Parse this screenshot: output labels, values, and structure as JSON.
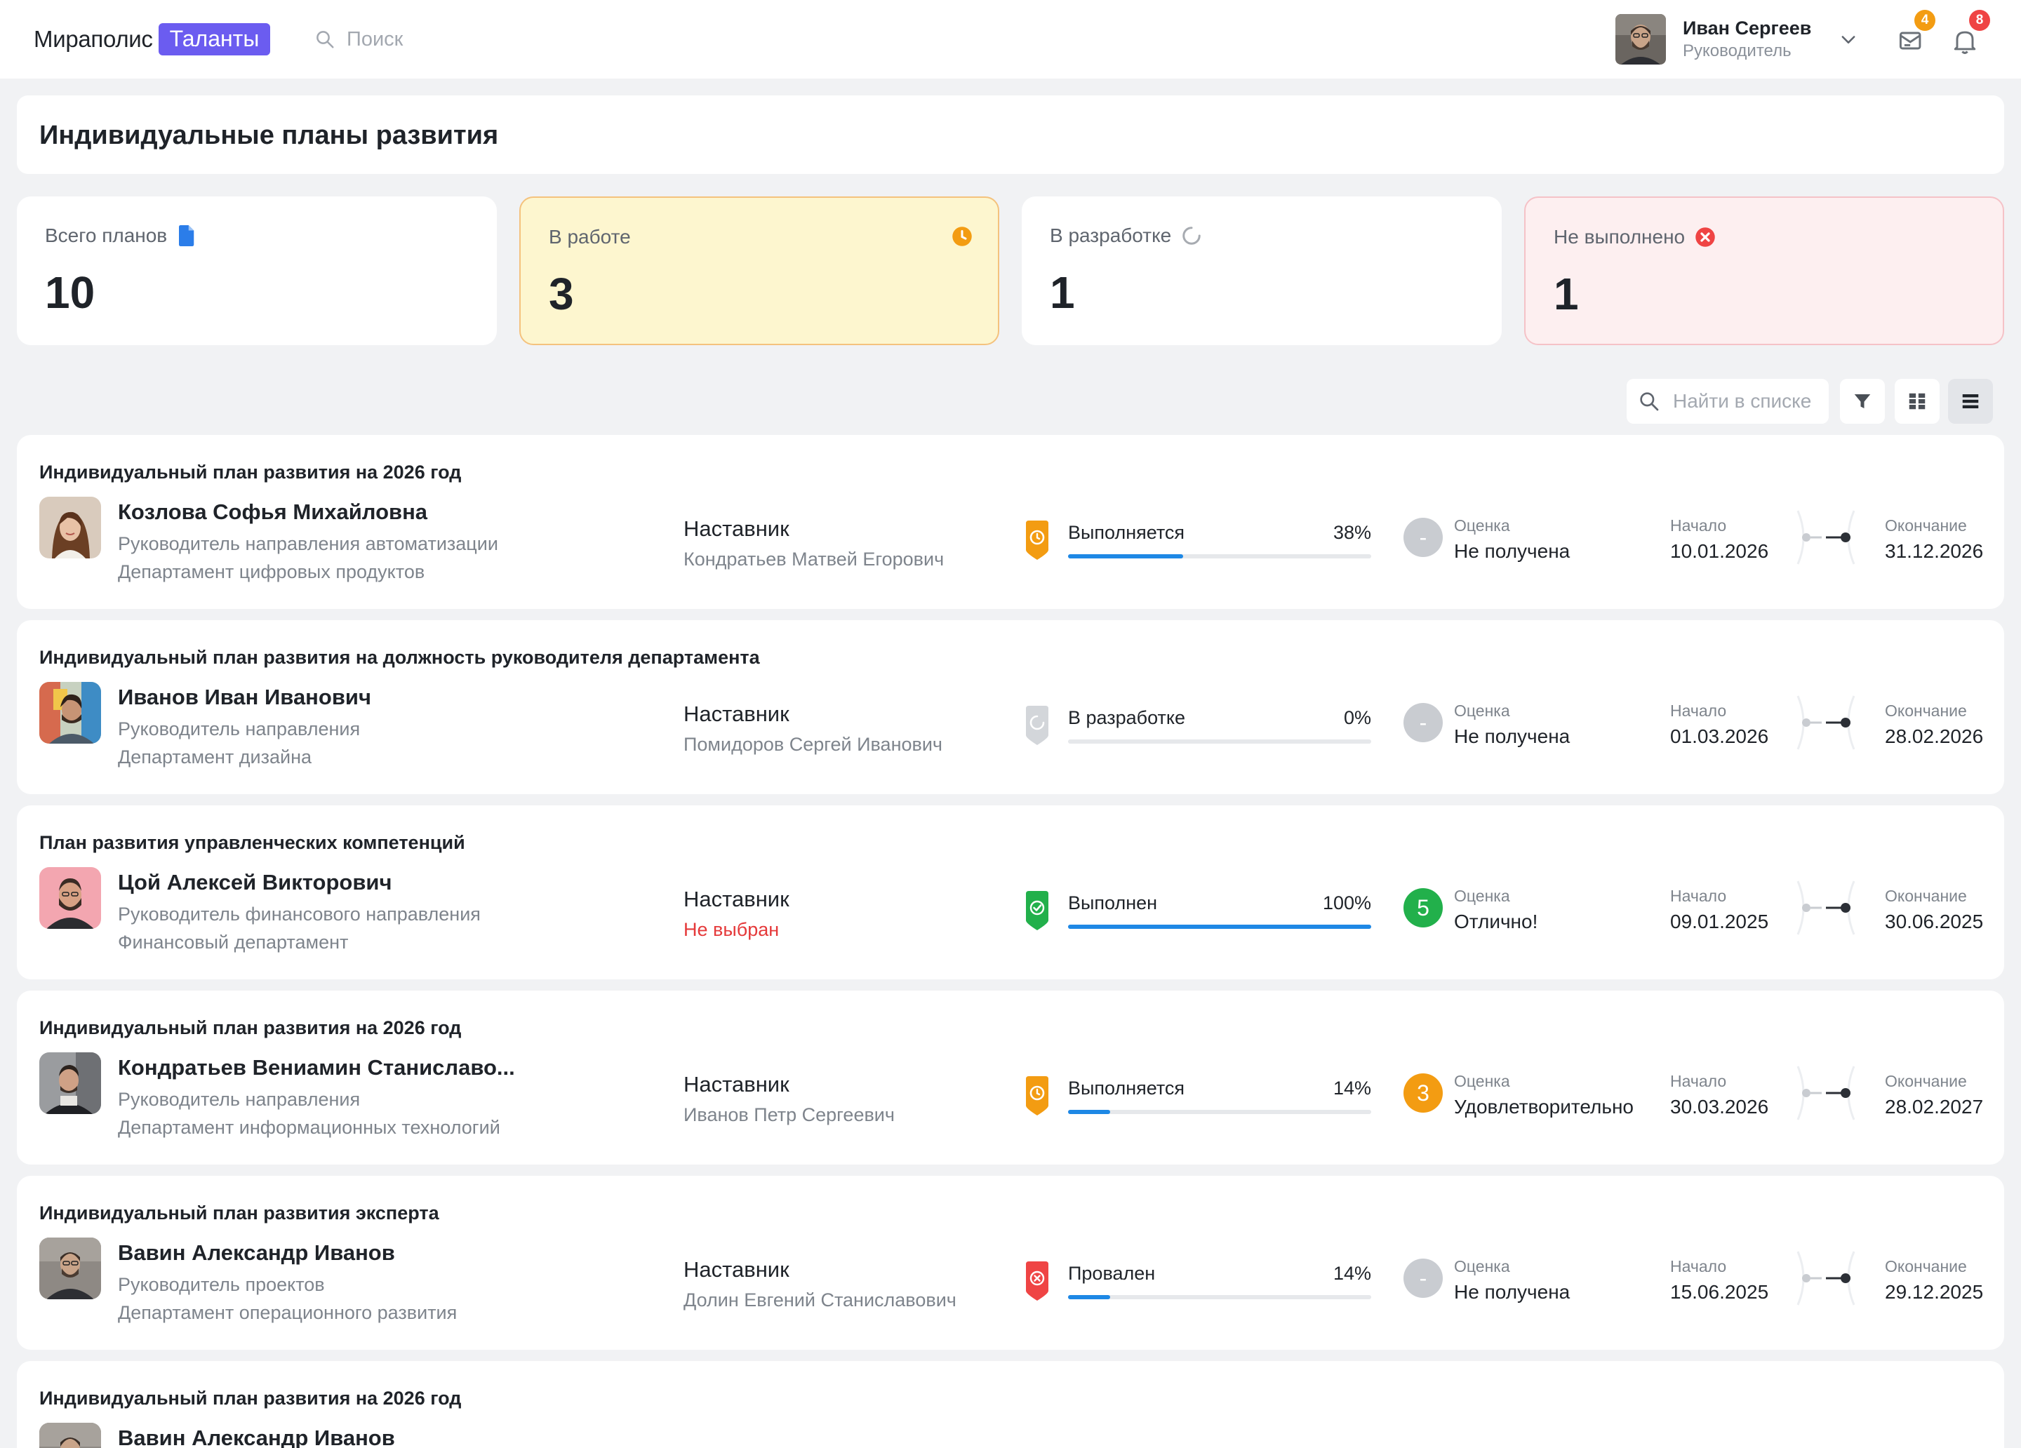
{
  "header": {
    "logo_text": "Мираполис",
    "logo_badge": "Таланты",
    "search_placeholder": "Поиск",
    "user_name": "Иван Сергеев",
    "user_role": "Руководитель",
    "messages_count": "4",
    "notifications_count": "8"
  },
  "page": {
    "title": "Индивидуальные планы развития"
  },
  "stats": [
    {
      "label": "Всего планов",
      "value": "10",
      "icon": "document-icon"
    },
    {
      "label": "В работе",
      "value": "3",
      "icon": "clock-icon"
    },
    {
      "label": "В разработке",
      "value": "1",
      "icon": "spinner-icon"
    },
    {
      "label": "Не выполнено",
      "value": "1",
      "icon": "error-icon"
    }
  ],
  "toolbar": {
    "search_placeholder": "Найти в списке"
  },
  "labels": {
    "mentor": "Наставник",
    "grade": "Оценка",
    "start": "Начало",
    "end": "Окончание"
  },
  "colors": {
    "accent": "#6b5cf0",
    "progress": "#1e88e5",
    "in_progress": "#f39c12",
    "done": "#22b04b",
    "failed": "#ef4444",
    "draft": "#c7cace"
  },
  "plans": [
    {
      "title": "Индивидуальный план развития на 2026 год",
      "name": "Козлова Софья Михайловна",
      "position": "Руководитель направления автоматизации",
      "department": "Департамент цифровых продуктов",
      "mentor": "Кондратьев Матвей Егорович",
      "status": "Выполняется",
      "status_type": "in_progress",
      "percent": "38%",
      "progress": 0.38,
      "grade_mark": "-",
      "grade": "Не получена",
      "start": "10.01.2026",
      "end": "31.12.2026"
    },
    {
      "title": "Индивидуальный план развития на должность руководителя департамента",
      "name": "Иванов Иван Иванович",
      "position": "Руководитель направления",
      "department": "Департамент дизайна",
      "mentor": "Помидоров Сергей Иванович",
      "status": "В разработке",
      "status_type": "draft",
      "percent": "0%",
      "progress": 0,
      "grade_mark": "-",
      "grade": "Не получена",
      "start": "01.03.2026",
      "end": "28.02.2026"
    },
    {
      "title": "План развития управленческих компетенций",
      "name": "Цой Алексей Викторович",
      "position": "Руководитель финансового направления",
      "department": "Финансовый департамент",
      "mentor": "Не выбран",
      "status": "Выполнен",
      "status_type": "done",
      "percent": "100%",
      "progress": 1,
      "grade_mark": "5",
      "grade": "Отлично!",
      "start": "09.01.2025",
      "end": "30.06.2025"
    },
    {
      "title": "Индивидуальный план развития на 2026 год",
      "name": "Кондратьев Вениамин Станиславо...",
      "position": "Руководитель направления",
      "department": "Департамент информационных технологий",
      "mentor": "Иванов Петр Сергеевич",
      "status": "Выполняется",
      "status_type": "in_progress",
      "percent": "14%",
      "progress": 0.14,
      "grade_mark": "3",
      "grade": "Удовлетворительно",
      "start": "30.03.2026",
      "end": "28.02.2027"
    },
    {
      "title": "Индивидуальный план развития эксперта",
      "name": "Вавин Александр Иванов",
      "position": "Руководитель проектов",
      "department": "Департамент операционного развития",
      "mentor": "Долин Евгений Станиславович",
      "status": "Провален",
      "status_type": "failed",
      "percent": "14%",
      "progress": 0.14,
      "grade_mark": "-",
      "grade": "Не получена",
      "start": "15.06.2025",
      "end": "29.12.2025"
    },
    {
      "title": "Индивидуальный план развития на 2026 год",
      "name": "Вавин Александр Иванов"
    }
  ]
}
